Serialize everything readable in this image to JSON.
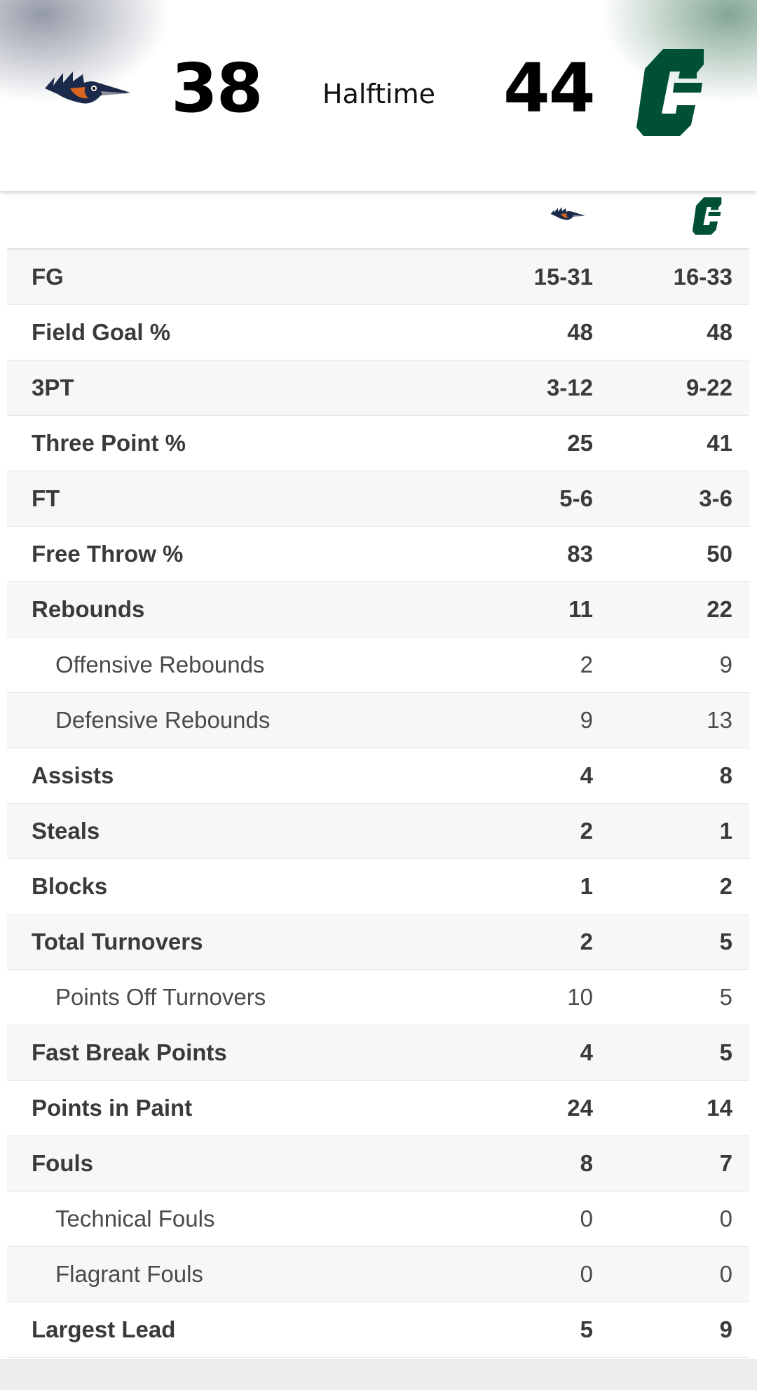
{
  "scoreboard": {
    "away_score": "38",
    "home_score": "44",
    "status": "Halftime",
    "away_logo_icon": "roadrunner-logo-icon",
    "home_logo_icon": "charlotte-c-logo-icon",
    "colors": {
      "away_navy": "#1b2a4a",
      "away_orange": "#d9661f",
      "home_green": "#005035"
    }
  },
  "stats": [
    {
      "label": "FG",
      "away": "15-31",
      "home": "16-33",
      "type": "main"
    },
    {
      "label": "Field Goal %",
      "away": "48",
      "home": "48",
      "type": "main"
    },
    {
      "label": "3PT",
      "away": "3-12",
      "home": "9-22",
      "type": "main"
    },
    {
      "label": "Three Point %",
      "away": "25",
      "home": "41",
      "type": "main"
    },
    {
      "label": "FT",
      "away": "5-6",
      "home": "3-6",
      "type": "main"
    },
    {
      "label": "Free Throw %",
      "away": "83",
      "home": "50",
      "type": "main"
    },
    {
      "label": "Rebounds",
      "away": "11",
      "home": "22",
      "type": "main"
    },
    {
      "label": "Offensive Rebounds",
      "away": "2",
      "home": "9",
      "type": "sub"
    },
    {
      "label": "Defensive Rebounds",
      "away": "9",
      "home": "13",
      "type": "sub"
    },
    {
      "label": "Assists",
      "away": "4",
      "home": "8",
      "type": "main"
    },
    {
      "label": "Steals",
      "away": "2",
      "home": "1",
      "type": "main"
    },
    {
      "label": "Blocks",
      "away": "1",
      "home": "2",
      "type": "main"
    },
    {
      "label": "Total Turnovers",
      "away": "2",
      "home": "5",
      "type": "main"
    },
    {
      "label": "Points Off Turnovers",
      "away": "10",
      "home": "5",
      "type": "sub"
    },
    {
      "label": "Fast Break Points",
      "away": "4",
      "home": "5",
      "type": "main"
    },
    {
      "label": "Points in Paint",
      "away": "24",
      "home": "14",
      "type": "main"
    },
    {
      "label": "Fouls",
      "away": "8",
      "home": "7",
      "type": "main"
    },
    {
      "label": "Technical Fouls",
      "away": "0",
      "home": "0",
      "type": "sub"
    },
    {
      "label": "Flagrant Fouls",
      "away": "0",
      "home": "0",
      "type": "sub"
    },
    {
      "label": "Largest Lead",
      "away": "5",
      "home": "9",
      "type": "main"
    }
  ]
}
